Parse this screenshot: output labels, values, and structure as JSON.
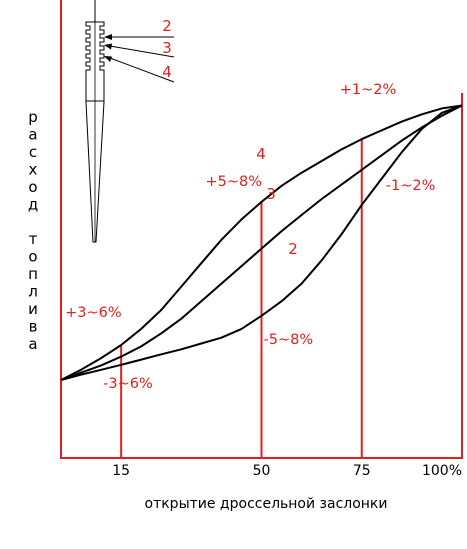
{
  "chart_data": {
    "type": "line",
    "xlabel": "открытие дроссельной заслонки",
    "ylabel": "расход топлива",
    "x_ticks": [
      "15",
      "50",
      "75",
      "100%"
    ],
    "xlim": [
      0,
      100
    ],
    "ylim": [
      0,
      100
    ],
    "grid": false,
    "colors": {
      "axis": "#e02020",
      "curves": "#000000",
      "annotations": "#e02020"
    },
    "series": [
      {
        "name": "4",
        "x": [
          0,
          5,
          10,
          15,
          20,
          25,
          30,
          35,
          40,
          45,
          50,
          55,
          60,
          65,
          70,
          75,
          80,
          85,
          90,
          95,
          100
        ],
        "y": [
          0,
          3.5,
          7.5,
          12,
          17.5,
          24,
          32,
          40,
          48,
          55,
          61,
          66.5,
          71,
          75,
          79,
          82.5,
          85.5,
          88.5,
          91,
          93,
          94
        ]
      },
      {
        "name": "3",
        "x": [
          0,
          5,
          10,
          15,
          20,
          25,
          30,
          35,
          40,
          45,
          50,
          55,
          60,
          65,
          70,
          75,
          80,
          85,
          90,
          95,
          100
        ],
        "y": [
          0,
          2.5,
          5,
          8,
          11.5,
          16,
          21,
          27,
          33,
          39,
          45,
          51,
          56.5,
          62,
          67,
          72,
          77,
          82,
          86.5,
          90.5,
          94
        ]
      },
      {
        "name": "2",
        "x": [
          0,
          5,
          10,
          15,
          20,
          25,
          30,
          35,
          40,
          45,
          50,
          55,
          60,
          65,
          70,
          75,
          80,
          85,
          90,
          95,
          100
        ],
        "y": [
          0,
          1.8,
          3.5,
          5.2,
          7,
          8.8,
          10.5,
          12.5,
          14.5,
          17.5,
          22,
          27,
          33,
          41,
          50,
          60,
          69,
          78,
          86,
          91.5,
          94
        ]
      }
    ],
    "annotations": [
      {
        "text": "+3~6%",
        "x": 15
      },
      {
        "text": "-3~6%",
        "x": 15
      },
      {
        "text": "+5~8%",
        "x": 50
      },
      {
        "text": "-5~8%",
        "x": 50
      },
      {
        "text": "+1~2%",
        "x": 75
      },
      {
        "text": "-1~2%",
        "x": 75
      }
    ],
    "inset": {
      "name": "needle",
      "labels": [
        "2",
        "3",
        "4"
      ]
    }
  }
}
